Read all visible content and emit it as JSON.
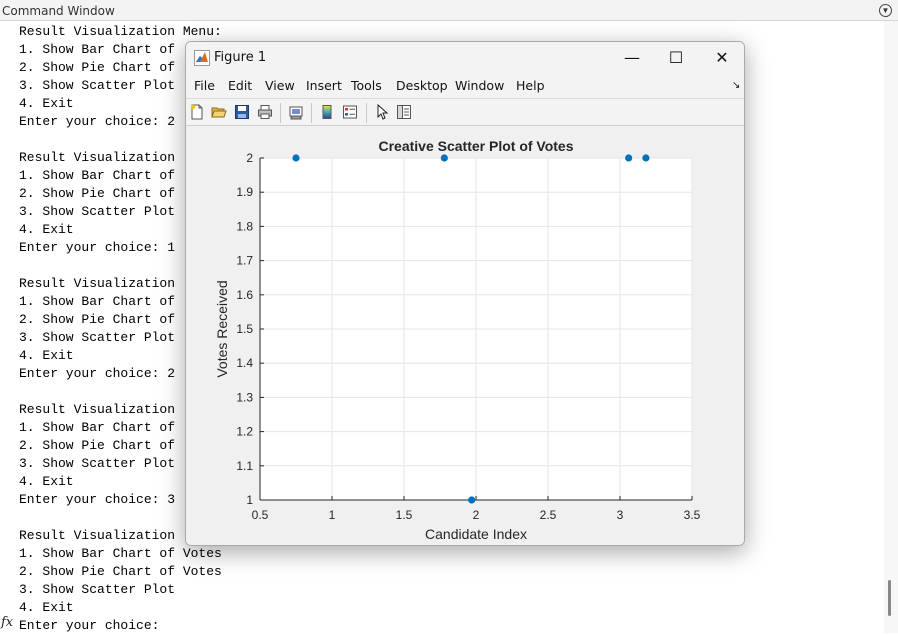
{
  "command_window": {
    "title": "Command Window",
    "lines": [
      "Result Visualization Menu:",
      "1. Show Bar Chart of",
      "2. Show Pie Chart of",
      "3. Show Scatter Plot",
      "4. Exit",
      "Enter your choice: 2",
      "",
      "Result Visualization",
      "1. Show Bar Chart of",
      "2. Show Pie Chart of",
      "3. Show Scatter Plot",
      "4. Exit",
      "Enter your choice: 1",
      "",
      "Result Visualization",
      "1. Show Bar Chart of",
      "2. Show Pie Chart of",
      "3. Show Scatter Plot",
      "4. Exit",
      "Enter your choice: 2",
      "",
      "Result Visualization",
      "1. Show Bar Chart of",
      "2. Show Pie Chart of",
      "3. Show Scatter Plot",
      "4. Exit",
      "Enter your choice: 3",
      "",
      "Result Visualization",
      "1. Show Bar Chart of Votes",
      "2. Show Pie Chart of Votes",
      "3. Show Scatter Plot",
      "4. Exit",
      "Enter your choice:"
    ],
    "prompt_symbol": "fx"
  },
  "figure": {
    "title": "Figure 1",
    "window_buttons": {
      "minimize": "—",
      "maximize": "☐",
      "close": "✕"
    },
    "menu": [
      "File",
      "Edit",
      "View",
      "Insert",
      "Tools",
      "Desktop",
      "Window",
      "Help"
    ],
    "dock_glyph": "↘",
    "toolbar_icons": [
      "new-figure-icon",
      "open-file-icon",
      "save-icon",
      "print-icon",
      "print-preview-icon",
      "colorbar-icon",
      "legend-icon",
      "pointer-icon",
      "property-inspector-icon"
    ]
  },
  "chart_data": {
    "type": "scatter",
    "title": "Creative Scatter Plot of Votes",
    "xlabel": "Candidate Index",
    "ylabel": "Votes Received",
    "xlim": [
      0.5,
      3.5
    ],
    "ylim": [
      1,
      2
    ],
    "xticks": [
      0.5,
      1,
      1.5,
      2,
      2.5,
      3,
      3.5
    ],
    "xtick_labels": [
      "0.5",
      "1",
      "1.5",
      "2",
      "2.5",
      "3",
      "3.5"
    ],
    "yticks": [
      1,
      1.1,
      1.2,
      1.3,
      1.4,
      1.5,
      1.6,
      1.7,
      1.8,
      1.9,
      2
    ],
    "ytick_labels": [
      "1",
      "1.1",
      "1.2",
      "1.3",
      "1.4",
      "1.5",
      "1.6",
      "1.7",
      "1.8",
      "1.9",
      "2"
    ],
    "grid": true,
    "marker_color": "#0072BD",
    "points": [
      {
        "x": 0.75,
        "y": 2
      },
      {
        "x": 1.78,
        "y": 2
      },
      {
        "x": 1.97,
        "y": 1
      },
      {
        "x": 3.06,
        "y": 2
      },
      {
        "x": 3.18,
        "y": 2
      }
    ]
  }
}
